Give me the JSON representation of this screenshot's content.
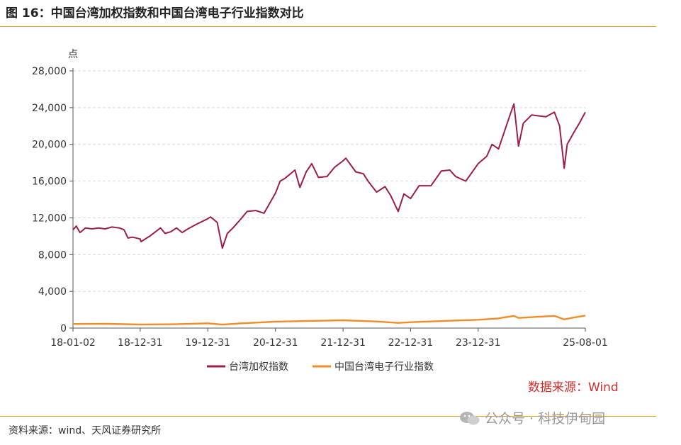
{
  "figure": {
    "title": "图 16：中国台湾加权指数和中国台湾电子行业指数对比",
    "source_footer": "资料来源：wind、天风证券研究所",
    "watermark": "公众号 · 科技伊甸园"
  },
  "colors": {
    "taiex": "#9c1f45",
    "electronics": "#f28c28",
    "accent_rule": "#e3a020",
    "source_note": "#d42b2b"
  },
  "chart_data": {
    "type": "line",
    "title": "",
    "ylabel": "点",
    "xlabel": "",
    "ylim": [
      0,
      28000
    ],
    "yticks": [
      0,
      4000,
      8000,
      12000,
      16000,
      20000,
      24000,
      28000
    ],
    "ytick_labels": [
      "0",
      "4,000",
      "8,000",
      "12,000",
      "16,000",
      "20,000",
      "24,000",
      "28,000"
    ],
    "xlim": [
      "2018-01-02",
      "2025-08-01"
    ],
    "xticks": [
      "2018-01-02",
      "2018-12-31",
      "2019-12-31",
      "2020-12-31",
      "2021-12-31",
      "2022-12-31",
      "2023-12-31",
      "2025-08-01"
    ],
    "xtick_labels": [
      "18-01-02",
      "18-12-31",
      "19-12-31",
      "20-12-31",
      "21-12-31",
      "22-12-31",
      "23-12-31",
      "25-08-01"
    ],
    "grid": "horizontal-dashed",
    "legend_position": "bottom",
    "source_note": "数据来源：Wind",
    "series": [
      {
        "name": "台湾加权指数",
        "color": "#9c1f45",
        "points": [
          [
            "2018-01-02",
            10700
          ],
          [
            "2018-01-20",
            11100
          ],
          [
            "2018-02-09",
            10400
          ],
          [
            "2018-03-10",
            10900
          ],
          [
            "2018-04-15",
            10800
          ],
          [
            "2018-05-20",
            10900
          ],
          [
            "2018-06-25",
            10800
          ],
          [
            "2018-07-31",
            11000
          ],
          [
            "2018-09-10",
            10900
          ],
          [
            "2018-10-05",
            10700
          ],
          [
            "2018-10-26",
            9800
          ],
          [
            "2018-11-20",
            9900
          ],
          [
            "2018-12-31",
            9700
          ],
          [
            "2019-01-04",
            9400
          ],
          [
            "2019-02-20",
            10000
          ],
          [
            "2019-04-20",
            10900
          ],
          [
            "2019-05-15",
            10300
          ],
          [
            "2019-06-15",
            10500
          ],
          [
            "2019-07-15",
            10900
          ],
          [
            "2019-08-15",
            10400
          ],
          [
            "2019-09-15",
            10800
          ],
          [
            "2019-10-31",
            11300
          ],
          [
            "2019-12-31",
            11900
          ],
          [
            "2020-01-15",
            12100
          ],
          [
            "2020-02-20",
            11500
          ],
          [
            "2020-03-19",
            8700
          ],
          [
            "2020-04-15",
            10300
          ],
          [
            "2020-05-15",
            10900
          ],
          [
            "2020-06-15",
            11600
          ],
          [
            "2020-07-31",
            12700
          ],
          [
            "2020-09-15",
            12800
          ],
          [
            "2020-10-30",
            12500
          ],
          [
            "2020-12-31",
            14700
          ],
          [
            "2021-01-25",
            16000
          ],
          [
            "2021-02-20",
            16300
          ],
          [
            "2021-04-15",
            17200
          ],
          [
            "2021-05-12",
            15300
          ],
          [
            "2021-06-15",
            17000
          ],
          [
            "2021-07-15",
            17900
          ],
          [
            "2021-08-20",
            16400
          ],
          [
            "2021-10-05",
            16500
          ],
          [
            "2021-11-15",
            17500
          ],
          [
            "2021-12-31",
            18200
          ],
          [
            "2022-01-15",
            18500
          ],
          [
            "2022-03-10",
            17000
          ],
          [
            "2022-04-20",
            16800
          ],
          [
            "2022-05-15",
            16000
          ],
          [
            "2022-06-30",
            14800
          ],
          [
            "2022-08-15",
            15400
          ],
          [
            "2022-09-15",
            14400
          ],
          [
            "2022-10-25",
            12700
          ],
          [
            "2022-11-25",
            14600
          ],
          [
            "2022-12-31",
            14100
          ],
          [
            "2023-02-15",
            15500
          ],
          [
            "2023-04-20",
            15500
          ],
          [
            "2023-06-15",
            17100
          ],
          [
            "2023-07-31",
            17200
          ],
          [
            "2023-08-31",
            16500
          ],
          [
            "2023-10-25",
            16000
          ],
          [
            "2023-12-31",
            17900
          ],
          [
            "2024-02-15",
            18700
          ],
          [
            "2024-03-15",
            20000
          ],
          [
            "2024-04-19",
            19500
          ],
          [
            "2024-06-15",
            22900
          ],
          [
            "2024-07-11",
            24400
          ],
          [
            "2024-08-05",
            19800
          ],
          [
            "2024-08-31",
            22300
          ],
          [
            "2024-10-15",
            23200
          ],
          [
            "2024-12-31",
            23000
          ],
          [
            "2025-02-15",
            23500
          ],
          [
            "2025-03-15",
            22000
          ],
          [
            "2025-04-09",
            17400
          ],
          [
            "2025-04-25",
            20000
          ],
          [
            "2025-05-31",
            21300
          ],
          [
            "2025-06-30",
            22300
          ],
          [
            "2025-08-01",
            23500
          ]
        ]
      },
      {
        "name": "中国台湾电子行业指数",
        "color": "#f28c28",
        "points": [
          [
            "2018-01-02",
            450
          ],
          [
            "2018-06-30",
            460
          ],
          [
            "2018-12-31",
            390
          ],
          [
            "2019-06-30",
            420
          ],
          [
            "2019-12-31",
            520
          ],
          [
            "2020-03-19",
            380
          ],
          [
            "2020-06-30",
            520
          ],
          [
            "2020-12-31",
            700
          ],
          [
            "2021-06-30",
            780
          ],
          [
            "2021-12-31",
            850
          ],
          [
            "2022-06-30",
            720
          ],
          [
            "2022-10-25",
            560
          ],
          [
            "2022-12-31",
            640
          ],
          [
            "2023-06-30",
            780
          ],
          [
            "2023-12-31",
            900
          ],
          [
            "2024-04-15",
            1050
          ],
          [
            "2024-07-11",
            1330
          ],
          [
            "2024-08-05",
            1100
          ],
          [
            "2024-12-31",
            1280
          ],
          [
            "2025-02-15",
            1330
          ],
          [
            "2025-04-09",
            950
          ],
          [
            "2025-05-31",
            1150
          ],
          [
            "2025-08-01",
            1360
          ]
        ]
      }
    ]
  }
}
